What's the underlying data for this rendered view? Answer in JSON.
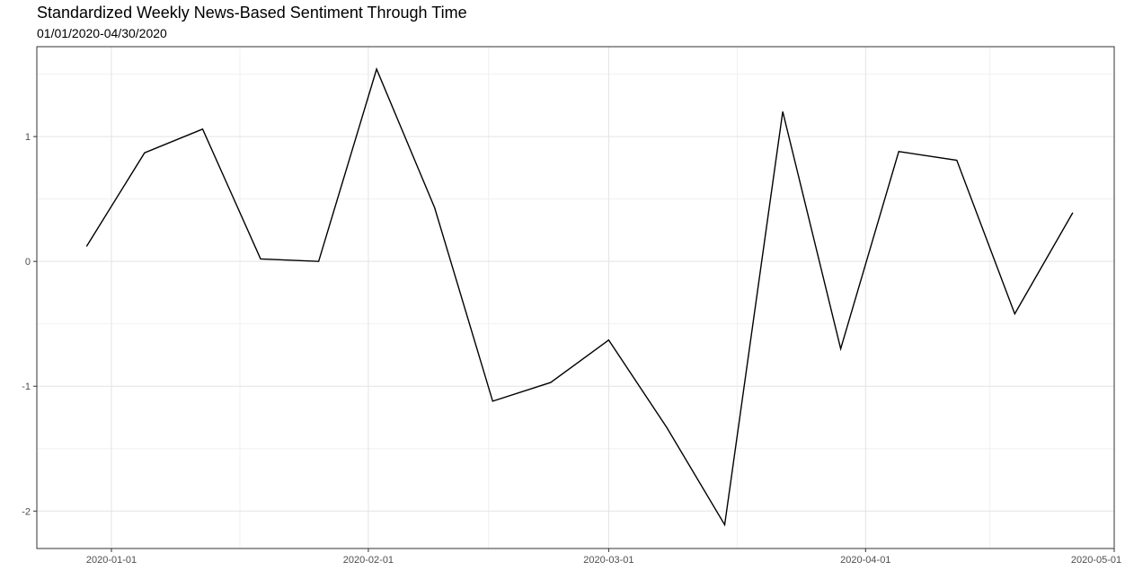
{
  "chart_data": {
    "type": "line",
    "title": "Standardized Weekly News-Based Sentiment Through Time",
    "subtitle": "01/01/2020-04/30/2020",
    "xlabel": "",
    "ylabel": "",
    "grid": true,
    "x_tick_labels": [
      "2020-01-01",
      "2020-02-01",
      "2020-03-01",
      "2020-04-01",
      "2020-05-01"
    ],
    "y_ticks": [
      -2,
      -1,
      0,
      1
    ],
    "xlim": [
      "2019-12-23",
      "2020-05-01"
    ],
    "ylim": [
      -2.3,
      1.72
    ],
    "series": [
      {
        "color": "#000000",
        "points": [
          {
            "x": "2019-12-29",
            "y": 0.12
          },
          {
            "x": "2020-01-05",
            "y": 0.87
          },
          {
            "x": "2020-01-12",
            "y": 1.06
          },
          {
            "x": "2020-01-19",
            "y": 0.02
          },
          {
            "x": "2020-01-26",
            "y": 0.0
          },
          {
            "x": "2020-02-02",
            "y": 1.54
          },
          {
            "x": "2020-02-09",
            "y": 0.43
          },
          {
            "x": "2020-02-16",
            "y": -1.12
          },
          {
            "x": "2020-02-23",
            "y": -0.97
          },
          {
            "x": "2020-03-01",
            "y": -0.63
          },
          {
            "x": "2020-03-08",
            "y": -1.33
          },
          {
            "x": "2020-03-15",
            "y": -2.11
          },
          {
            "x": "2020-03-22",
            "y": 1.2
          },
          {
            "x": "2020-03-29",
            "y": -0.7
          },
          {
            "x": "2020-04-05",
            "y": 0.88
          },
          {
            "x": "2020-04-12",
            "y": 0.81
          },
          {
            "x": "2020-04-19",
            "y": -0.42
          },
          {
            "x": "2020-04-26",
            "y": 0.39
          }
        ]
      }
    ]
  }
}
